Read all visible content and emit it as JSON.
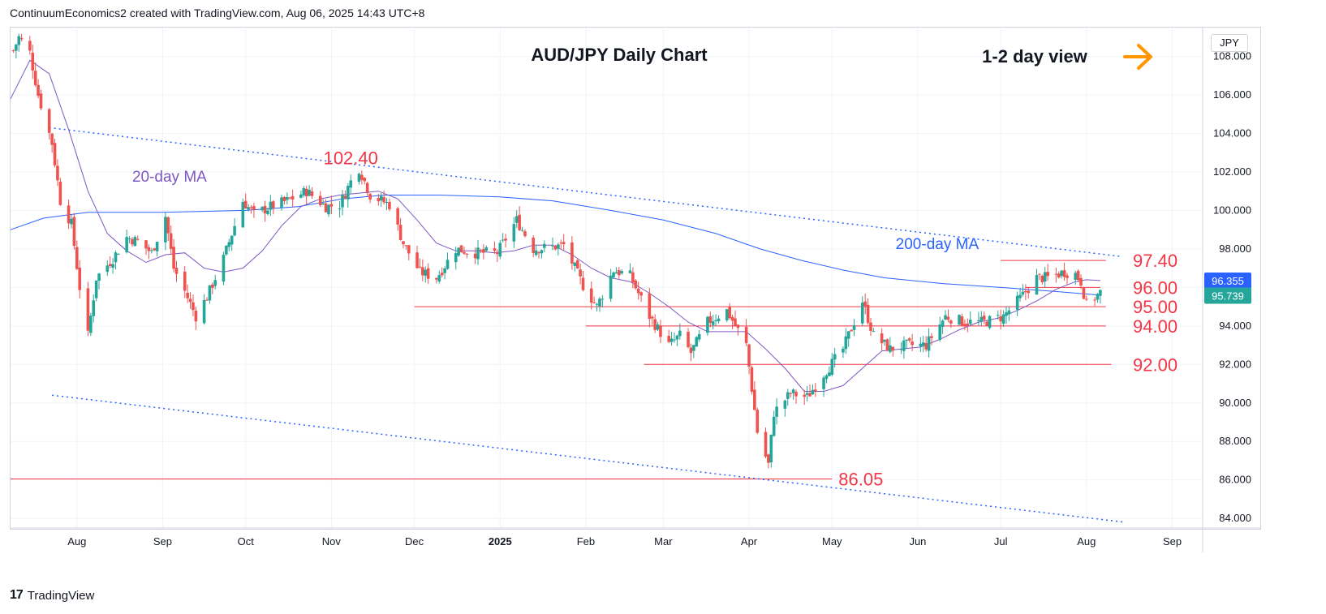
{
  "header": {
    "attribution": "ContinuumEconomics2 created with TradingView.com, Aug 06, 2025 14:43 UTC+8"
  },
  "footer": {
    "brand": "TradingView",
    "logo_mark": "17"
  },
  "colors": {
    "up_candle": "#26a69a",
    "down_candle": "#ef5350",
    "ma20": "#7e57c2",
    "ma200": "#2962ff",
    "trendline": "#2962ff",
    "level_line": "#f23645",
    "level_text": "#f23645",
    "arrow": "#ff9800",
    "badge_last": "#26a69a",
    "badge_prev": "#2962ff"
  },
  "chart_data": {
    "type": "candlestick",
    "title": "AUD/JPY Daily Chart",
    "horizon_label": "1-2 day view",
    "horizon_icon": "right-arrow-icon",
    "currency_label": "JPY",
    "ylim": [
      83.5,
      109.5
    ],
    "y_ticks": [
      "84.000",
      "86.000",
      "88.000",
      "90.000",
      "92.000",
      "94.000",
      "96.000",
      "98.000",
      "100.000",
      "102.000",
      "104.000",
      "106.000",
      "108.000"
    ],
    "x_range": [
      "2024-07-08",
      "2025-09-12"
    ],
    "x_ticks": [
      {
        "date": "2024-08-01",
        "label": "Aug"
      },
      {
        "date": "2024-09-01",
        "label": "Sep"
      },
      {
        "date": "2024-10-01",
        "label": "Oct"
      },
      {
        "date": "2024-11-01",
        "label": "Nov"
      },
      {
        "date": "2024-12-01",
        "label": "Dec"
      },
      {
        "date": "2025-01-01",
        "label": "2025"
      },
      {
        "date": "2025-02-01",
        "label": "Feb"
      },
      {
        "date": "2025-03-01",
        "label": "Mar"
      },
      {
        "date": "2025-04-01",
        "label": "Apr"
      },
      {
        "date": "2025-05-01",
        "label": "May"
      },
      {
        "date": "2025-06-01",
        "label": "Jun"
      },
      {
        "date": "2025-07-01",
        "label": "Jul"
      },
      {
        "date": "2025-08-01",
        "label": "Aug"
      },
      {
        "date": "2025-09-01",
        "label": "Sep"
      }
    ],
    "price_path": [
      [
        "2024-07-09",
        108.3
      ],
      [
        "2024-07-11",
        109.0
      ],
      [
        "2024-07-15",
        108.2
      ],
      [
        "2024-07-18",
        106.0
      ],
      [
        "2024-07-23",
        103.5
      ],
      [
        "2024-07-26",
        100.5
      ],
      [
        "2024-07-30",
        99.3
      ],
      [
        "2024-08-02",
        96.0
      ],
      [
        "2024-08-05",
        93.5
      ],
      [
        "2024-08-08",
        96.5
      ],
      [
        "2024-08-14",
        97.5
      ],
      [
        "2024-08-19",
        98.6
      ],
      [
        "2024-08-23",
        98.4
      ],
      [
        "2024-08-28",
        97.8
      ],
      [
        "2024-09-02",
        99.7
      ],
      [
        "2024-09-05",
        97.0
      ],
      [
        "2024-09-09",
        95.8
      ],
      [
        "2024-09-13",
        94.5
      ],
      [
        "2024-09-17",
        95.5
      ],
      [
        "2024-09-23",
        97.5
      ],
      [
        "2024-09-30",
        100.5
      ],
      [
        "2024-10-04",
        99.8
      ],
      [
        "2024-10-10",
        100.2
      ],
      [
        "2024-10-16",
        100.5
      ],
      [
        "2024-10-23",
        101.0
      ],
      [
        "2024-10-30",
        100.2
      ],
      [
        "2024-11-04",
        100.3
      ],
      [
        "2024-11-08",
        101.5
      ],
      [
        "2024-11-11",
        102.2
      ],
      [
        "2024-11-15",
        100.8
      ],
      [
        "2024-11-22",
        100.3
      ],
      [
        "2024-11-27",
        98.3
      ],
      [
        "2024-12-03",
        96.8
      ],
      [
        "2024-12-09",
        96.5
      ],
      [
        "2024-12-16",
        98.0
      ],
      [
        "2024-12-23",
        97.8
      ],
      [
        "2024-12-31",
        97.8
      ],
      [
        "2025-01-07",
        99.5
      ],
      [
        "2025-01-13",
        98.0
      ],
      [
        "2025-01-20",
        98.1
      ],
      [
        "2025-01-24",
        98.2
      ],
      [
        "2025-01-31",
        96.1
      ],
      [
        "2025-02-05",
        95.0
      ],
      [
        "2025-02-11",
        96.9
      ],
      [
        "2025-02-17",
        96.6
      ],
      [
        "2025-02-24",
        94.5
      ],
      [
        "2025-03-03",
        93.0
      ],
      [
        "2025-03-07",
        93.5
      ],
      [
        "2025-03-11",
        92.6
      ],
      [
        "2025-03-17",
        94.2
      ],
      [
        "2025-03-24",
        94.8
      ],
      [
        "2025-03-31",
        93.0
      ],
      [
        "2025-04-04",
        88.5
      ],
      [
        "2025-04-08",
        86.8
      ],
      [
        "2025-04-10",
        89.5
      ],
      [
        "2025-04-16",
        90.5
      ],
      [
        "2025-04-22",
        90.3
      ],
      [
        "2025-04-28",
        91.5
      ],
      [
        "2025-05-05",
        92.8
      ],
      [
        "2025-05-12",
        95.3
      ],
      [
        "2025-05-16",
        93.5
      ],
      [
        "2025-05-22",
        92.8
      ],
      [
        "2025-05-28",
        93.0
      ],
      [
        "2025-06-04",
        93.0
      ],
      [
        "2025-06-11",
        94.5
      ],
      [
        "2025-06-18",
        94.2
      ],
      [
        "2025-06-25",
        94.2
      ],
      [
        "2025-07-02",
        94.5
      ],
      [
        "2025-07-09",
        95.6
      ],
      [
        "2025-07-14",
        96.5
      ],
      [
        "2025-07-18",
        96.5
      ],
      [
        "2025-07-24",
        96.8
      ],
      [
        "2025-07-28",
        96.7
      ],
      [
        "2025-07-30",
        96.3
      ],
      [
        "2025-08-01",
        95.1
      ],
      [
        "2025-08-05",
        95.6
      ],
      [
        "2025-08-06",
        95.739
      ]
    ],
    "ma20_path": [
      [
        "2024-07-08",
        105.8
      ],
      [
        "2024-07-15",
        107.8
      ],
      [
        "2024-07-22",
        107.1
      ],
      [
        "2024-07-29",
        104.2
      ],
      [
        "2024-08-05",
        101.0
      ],
      [
        "2024-08-12",
        98.8
      ],
      [
        "2024-08-19",
        97.9
      ],
      [
        "2024-08-26",
        97.3
      ],
      [
        "2024-09-02",
        97.7
      ],
      [
        "2024-09-09",
        97.8
      ],
      [
        "2024-09-16",
        97.0
      ],
      [
        "2024-09-23",
        96.8
      ],
      [
        "2024-09-30",
        97.0
      ],
      [
        "2024-10-07",
        97.9
      ],
      [
        "2024-10-14",
        99.2
      ],
      [
        "2024-10-21",
        100.2
      ],
      [
        "2024-10-28",
        100.6
      ],
      [
        "2024-11-04",
        100.8
      ],
      [
        "2024-11-11",
        100.9
      ],
      [
        "2024-11-18",
        101.0
      ],
      [
        "2024-11-25",
        100.6
      ],
      [
        "2024-12-02",
        99.5
      ],
      [
        "2024-12-09",
        98.3
      ],
      [
        "2024-12-16",
        97.9
      ],
      [
        "2024-12-23",
        97.9
      ],
      [
        "2024-12-30",
        97.8
      ],
      [
        "2025-01-06",
        97.9
      ],
      [
        "2025-01-13",
        98.2
      ],
      [
        "2025-01-20",
        98.2
      ],
      [
        "2025-01-27",
        97.7
      ],
      [
        "2025-02-03",
        97.0
      ],
      [
        "2025-02-10",
        96.5
      ],
      [
        "2025-02-17",
        96.3
      ],
      [
        "2025-02-24",
        95.7
      ],
      [
        "2025-03-03",
        95.0
      ],
      [
        "2025-03-10",
        94.2
      ],
      [
        "2025-03-17",
        93.7
      ],
      [
        "2025-03-24",
        93.7
      ],
      [
        "2025-03-31",
        93.7
      ],
      [
        "2025-04-07",
        92.8
      ],
      [
        "2025-04-14",
        91.8
      ],
      [
        "2025-04-21",
        90.6
      ],
      [
        "2025-04-28",
        90.6
      ],
      [
        "2025-05-05",
        90.9
      ],
      [
        "2025-05-12",
        91.8
      ],
      [
        "2025-05-19",
        92.7
      ],
      [
        "2025-05-26",
        92.8
      ],
      [
        "2025-06-02",
        92.9
      ],
      [
        "2025-06-09",
        93.3
      ],
      [
        "2025-06-16",
        93.8
      ],
      [
        "2025-06-23",
        94.2
      ],
      [
        "2025-06-30",
        94.4
      ],
      [
        "2025-07-07",
        94.8
      ],
      [
        "2025-07-14",
        95.3
      ],
      [
        "2025-07-21",
        95.9
      ],
      [
        "2025-07-28",
        96.3
      ],
      [
        "2025-08-01",
        96.4
      ],
      [
        "2025-08-06",
        96.355
      ]
    ],
    "ma200_path": [
      [
        "2024-07-08",
        99.0
      ],
      [
        "2024-07-20",
        99.6
      ],
      [
        "2024-08-05",
        99.9
      ],
      [
        "2024-09-01",
        99.9
      ],
      [
        "2024-10-01",
        100.0
      ],
      [
        "2024-10-20",
        100.2
      ],
      [
        "2024-11-05",
        100.6
      ],
      [
        "2024-11-20",
        100.8
      ],
      [
        "2024-12-10",
        100.8
      ],
      [
        "2025-01-01",
        100.7
      ],
      [
        "2025-01-20",
        100.5
      ],
      [
        "2025-02-10",
        100.0
      ],
      [
        "2025-03-01",
        99.5
      ],
      [
        "2025-03-20",
        98.8
      ],
      [
        "2025-04-05",
        98.0
      ],
      [
        "2025-04-20",
        97.4
      ],
      [
        "2025-05-05",
        96.9
      ],
      [
        "2025-05-20",
        96.5
      ],
      [
        "2025-06-10",
        96.2
      ],
      [
        "2025-07-01",
        96.0
      ],
      [
        "2025-07-20",
        95.8
      ],
      [
        "2025-08-06",
        95.6
      ]
    ],
    "trendlines": [
      {
        "from": [
          "2024-07-22",
          104.3
        ],
        "to": [
          "2025-08-14",
          97.6
        ]
      },
      {
        "from": [
          "2024-07-23",
          90.4
        ],
        "to": [
          "2025-08-15",
          83.8
        ]
      }
    ],
    "levels": [
      {
        "value": 97.4,
        "label": "97.40",
        "from": "2025-07-01",
        "to": "2025-08-08"
      },
      {
        "value": 96.0,
        "label": "96.00",
        "from": "2025-07-10",
        "to": "2025-08-06"
      },
      {
        "value": 95.0,
        "label": "95.00",
        "from": "2024-12-01",
        "to": "2025-08-08"
      },
      {
        "value": 94.0,
        "label": "94.00",
        "from": "2025-02-01",
        "to": "2025-08-08"
      },
      {
        "value": 92.0,
        "label": "92.00",
        "from": "2025-02-22",
        "to": "2025-08-10"
      },
      {
        "value": 86.05,
        "label": "86.05",
        "from": "2024-07-08",
        "to": "2025-05-01"
      }
    ],
    "annotations": [
      {
        "text": "102.40",
        "date": "2024-11-08",
        "value": 102.4
      },
      {
        "text": "20-day MA",
        "date": "2024-08-21",
        "value": 101.5
      },
      {
        "text": "200-day MA",
        "date": "2025-05-24",
        "value": 98.0
      }
    ],
    "price_badges": [
      {
        "text": "96.355",
        "value": 96.355,
        "color": "#2962ff"
      },
      {
        "text": "95.739",
        "value": 95.739,
        "color": "#26a69a"
      }
    ],
    "grid": true
  }
}
